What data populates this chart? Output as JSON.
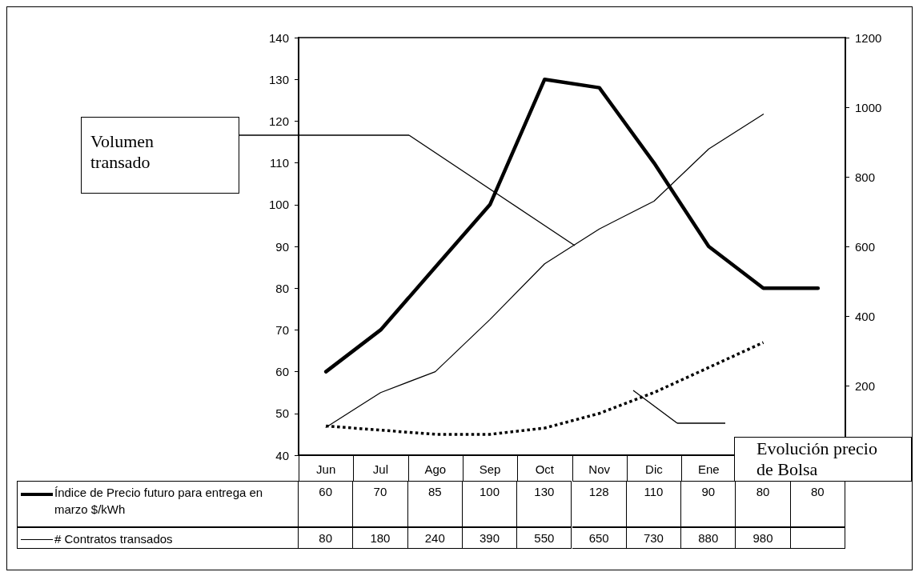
{
  "chart_data": {
    "type": "line",
    "categories": [
      "Jun",
      "Jul",
      "Ago",
      "Sep",
      "Oct",
      "Nov",
      "Dic",
      "Ene",
      null,
      null
    ],
    "series": [
      {
        "name": "Índice de Precio futuro para entrega en marzo $/kWh",
        "color": "#000000",
        "line_style": "solid",
        "values": [
          60,
          70,
          85,
          100,
          130,
          128,
          110,
          90,
          80,
          80
        ],
        "value_labels": [
          "60",
          "70",
          "85",
          "100",
          "130",
          "128",
          "110",
          "90",
          "80",
          "80"
        ]
      },
      {
        "name": "# Contratos transados",
        "color": "#000000",
        "line_style": "solid",
        "axis": "y2",
        "values": [
          80,
          180,
          240,
          390,
          550,
          650,
          730,
          880,
          980,
          null
        ],
        "value_labels": [
          "80",
          "180",
          "240",
          "390",
          "550",
          "650",
          "730",
          "880",
          "980",
          null
        ]
      },
      {
        "color": "#000000",
        "line_style": "dotted",
        "values": [
          47,
          46,
          45,
          45,
          46.5,
          50,
          55,
          61,
          67,
          null
        ]
      }
    ],
    "ylim": [
      40,
      140
    ],
    "yticks": [
      40,
      50,
      60,
      70,
      80,
      90,
      100,
      110,
      120,
      130,
      140
    ],
    "y2lim": [
      0,
      1200
    ],
    "y2ticks": [
      {
        "value": 0,
        "label": null
      },
      200,
      400,
      600,
      800,
      1000,
      1200
    ],
    "annotations": [
      "Volumen transado",
      "Evolución precio de Bolsa"
    ],
    "grid": false,
    "marker": "none",
    "legend": "bottom"
  }
}
